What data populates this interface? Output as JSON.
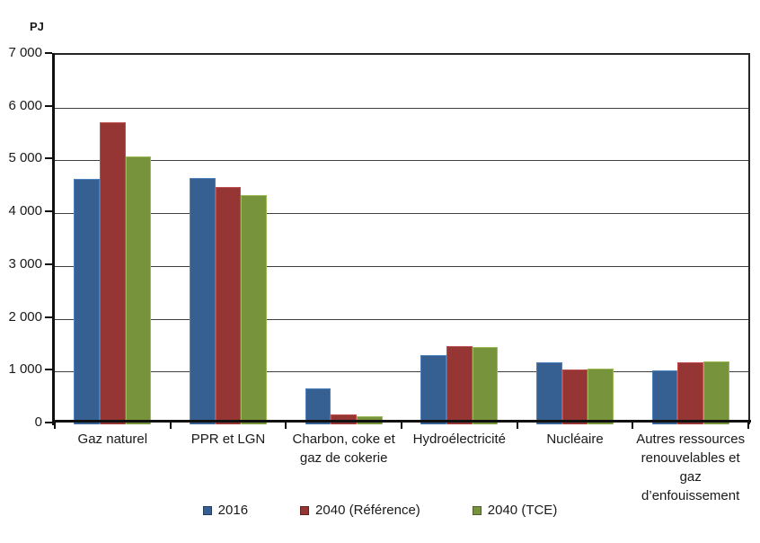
{
  "chart_data": {
    "type": "bar",
    "title": "",
    "ylabel": "PJ",
    "xlabel": "",
    "ylim": [
      0,
      7000
    ],
    "ytick_step": 1000,
    "ytick_labels": [
      "0",
      "1 000",
      "2 000",
      "3 000",
      "4 000",
      "5 000",
      "6 000",
      "7 000"
    ],
    "grid": true,
    "legend_position": "bottom",
    "categories": [
      "Gaz naturel",
      "PPR et LGN",
      "Charbon, coke et\ngaz de cokerie",
      "Hydroélectricité",
      "Nucléaire",
      "Autres ressources\nrenouvelables et\ngaz\nd’enfouissement"
    ],
    "series": [
      {
        "name": "2016",
        "color": "#356091",
        "edge_color": "#4F81BD",
        "values": [
          4650,
          4670,
          680,
          1320,
          1170,
          1020
        ]
      },
      {
        "name": "2040 (Référence)",
        "color": "#963634",
        "edge_color": "#C0504D",
        "values": [
          5730,
          4500,
          185,
          1480,
          1040,
          1170
        ]
      },
      {
        "name": "2040 (TCE)",
        "color": "#77933C",
        "edge_color": "#9BBB59",
        "values": [
          5070,
          4340,
          160,
          1470,
          1050,
          1190
        ]
      }
    ]
  }
}
